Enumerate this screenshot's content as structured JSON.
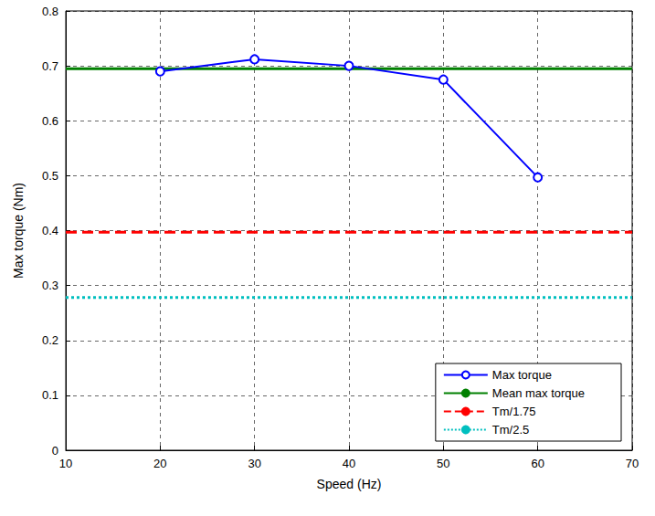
{
  "chart_data": {
    "type": "line",
    "x_label": "Speed (Hz)",
    "y_label": "Max torque (Nm)",
    "xlim": [
      10,
      70
    ],
    "xticks": [
      10,
      20,
      30,
      40,
      50,
      60,
      70
    ],
    "ylim": [
      0,
      0.8
    ],
    "yticks": [
      0,
      0.1,
      0.2,
      0.3,
      0.4,
      0.5,
      0.6,
      0.7,
      0.8
    ],
    "grid": true,
    "legend": "lower right",
    "series": [
      {
        "name": "Max torque",
        "type": "line",
        "color": "#0000ff",
        "marker": "circle",
        "line_style": "solid",
        "x": [
          20,
          30,
          40,
          50,
          60
        ],
        "values": [
          0.69,
          0.712,
          0.7,
          0.675,
          0.497
        ]
      },
      {
        "name": "Mean max torque",
        "type": "hline",
        "color": "#008000",
        "line_style": "solid",
        "values": [
          0.695
        ]
      },
      {
        "name": "Tm/1.75",
        "type": "hline",
        "color": "#ff0000",
        "line_style": "dashed",
        "values": [
          0.397
        ]
      },
      {
        "name": "Tm/2.5",
        "type": "hline",
        "color": "#00bfbf",
        "line_style": "dotted",
        "values": [
          0.278
        ]
      }
    ]
  }
}
